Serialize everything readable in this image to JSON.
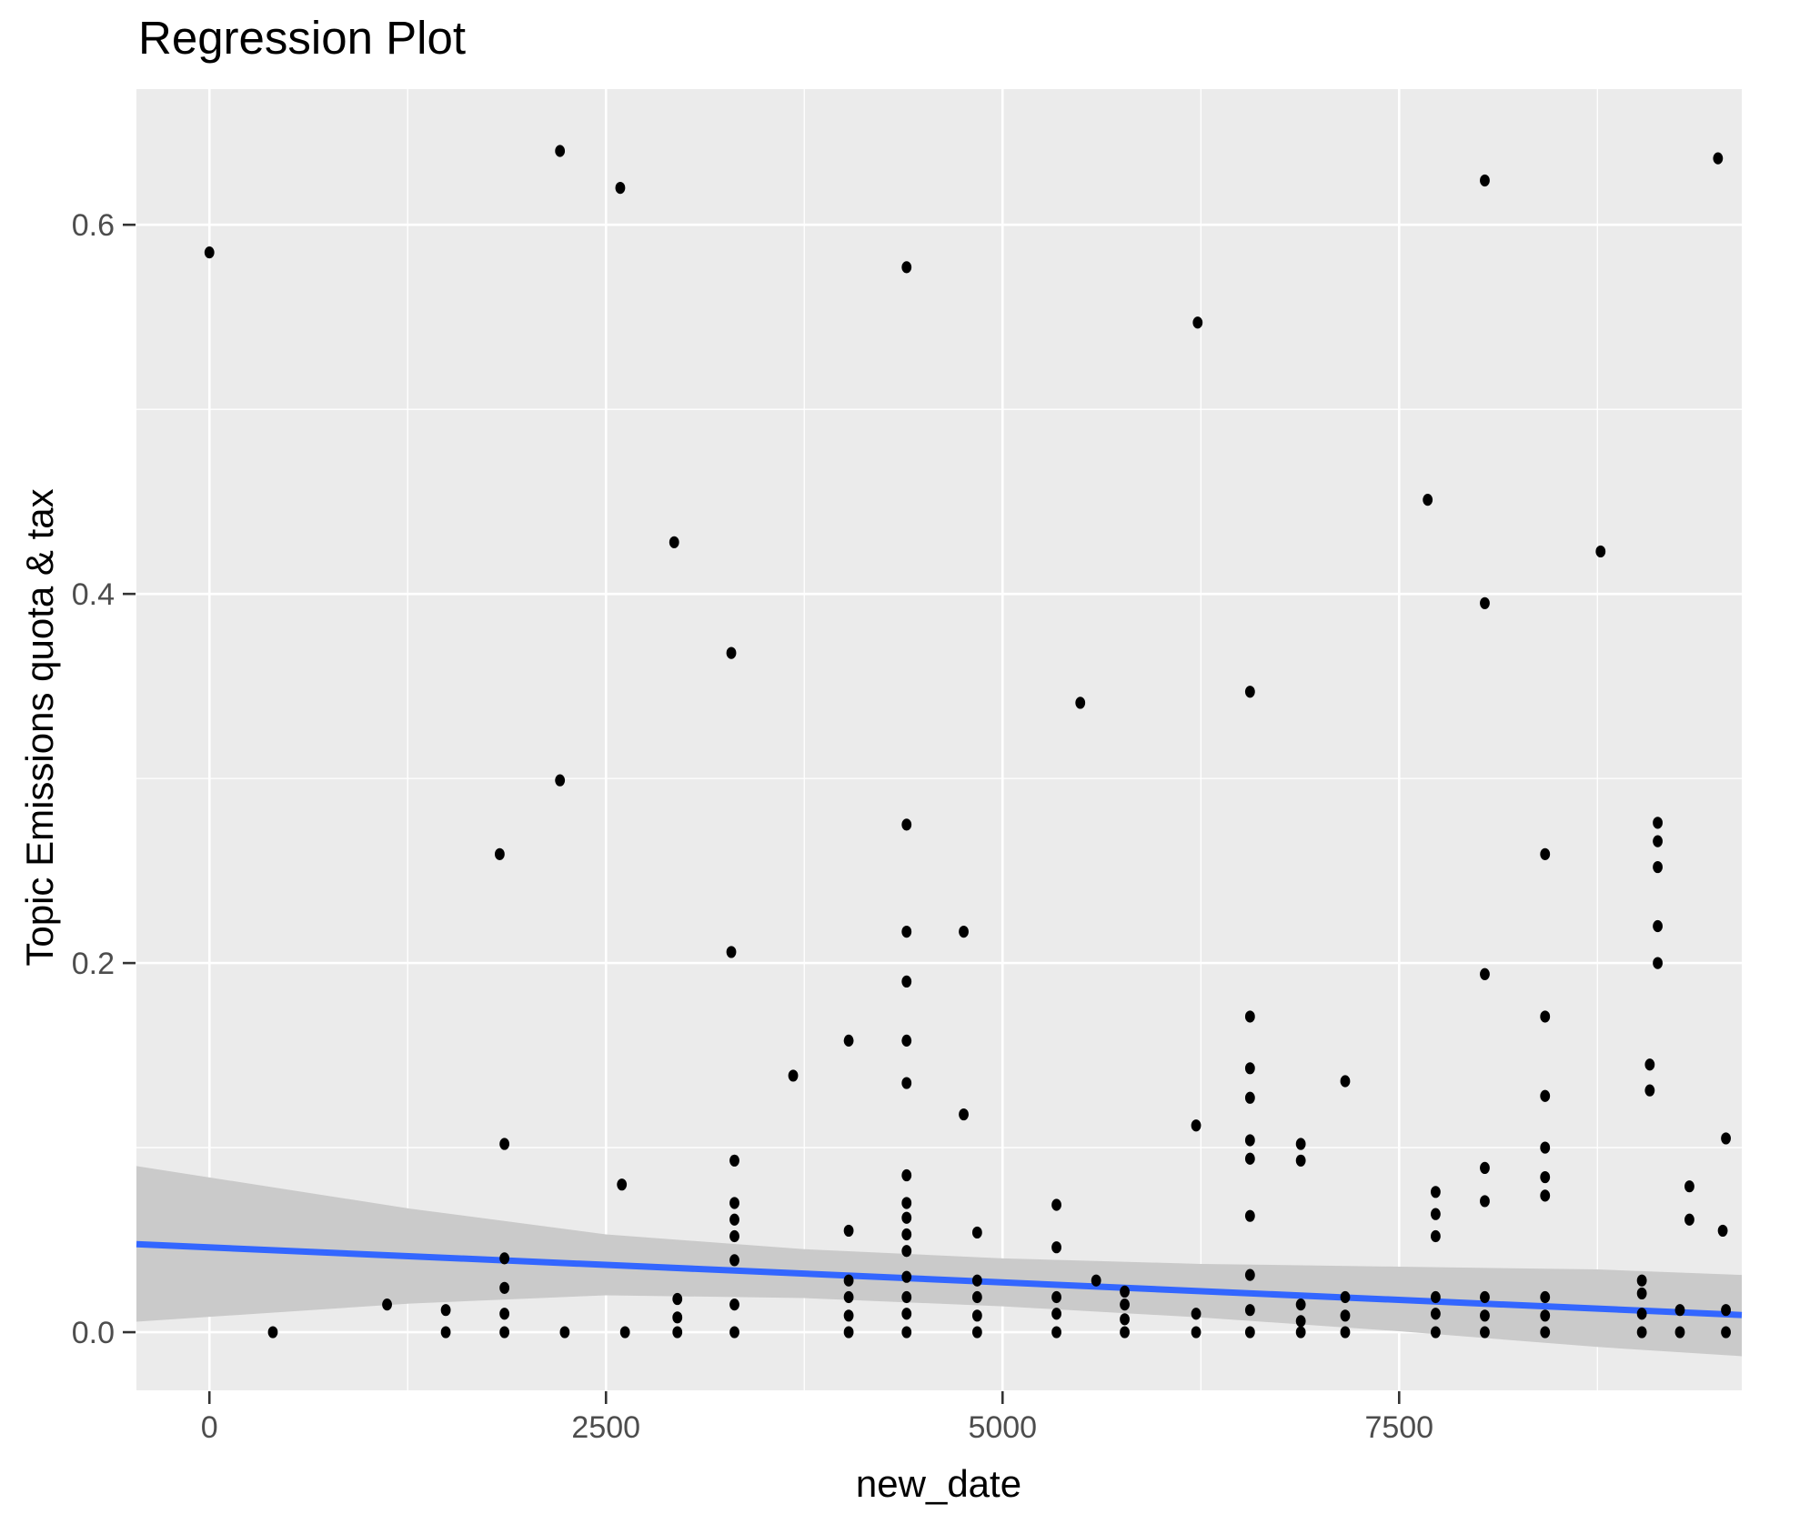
{
  "chart_data": {
    "type": "scatter",
    "title": "Regression Plot",
    "xlabel": "new_date",
    "ylabel": "Topic Emissions quota & tax",
    "x_ticks": {
      "values": [
        0,
        2500,
        5000,
        7500
      ],
      "labels": [
        "0",
        "2500",
        "5000",
        "7500"
      ]
    },
    "y_ticks": {
      "values": [
        0.0,
        0.2,
        0.4,
        0.6
      ],
      "labels": [
        "0.0",
        "0.2",
        "0.4",
        "0.6"
      ]
    },
    "x_minor": [
      1250,
      3750,
      6250,
      8750
    ],
    "y_minor": [
      0.1,
      0.3,
      0.5
    ],
    "xlim": [
      -460,
      9660
    ],
    "ylim": [
      -0.0315,
      0.6735
    ],
    "grid": "on",
    "legend_position": "none",
    "colors": {
      "panel_bg": "#EBEBEB",
      "grid": "#FFFFFF",
      "point": "#000000",
      "smooth_line": "#3366FF",
      "ci_band": "#CACACA",
      "tick_mark": "#333333",
      "tick_label": "#4D4D4D",
      "text": "#000000"
    },
    "regression_line": {
      "x": [
        -460,
        9660
      ],
      "y": [
        0.0477,
        0.0093
      ]
    },
    "ci_band": {
      "x": [
        -460,
        1261,
        2500,
        3750,
        5000,
        6250,
        7500,
        8750,
        9660
      ],
      "upper": [
        0.09,
        0.067,
        0.053,
        0.045,
        0.04,
        0.037,
        0.0355,
        0.034,
        0.031
      ],
      "lower": [
        0.0057,
        0.0155,
        0.02,
        0.0185,
        0.014,
        0.008,
        0.0005,
        -0.008,
        -0.013
      ]
    },
    "points": [
      [
        0,
        0.585
      ],
      [
        400,
        0.0
      ],
      [
        1120,
        0.015
      ],
      [
        1490,
        0.012
      ],
      [
        1490,
        0.0
      ],
      [
        1830,
        0.259
      ],
      [
        1860,
        0.102
      ],
      [
        1860,
        0.04
      ],
      [
        1860,
        0.024
      ],
      [
        1860,
        0.01
      ],
      [
        1860,
        0.0
      ],
      [
        2210,
        0.64
      ],
      [
        2210,
        0.299
      ],
      [
        2240,
        0.0
      ],
      [
        2590,
        0.62
      ],
      [
        2600,
        0.08
      ],
      [
        2620,
        0.0
      ],
      [
        2930,
        0.428
      ],
      [
        2950,
        0.018
      ],
      [
        2950,
        0.008
      ],
      [
        2950,
        0.0
      ],
      [
        3290,
        0.368
      ],
      [
        3290,
        0.206
      ],
      [
        3310,
        0.093
      ],
      [
        3310,
        0.07
      ],
      [
        3310,
        0.061
      ],
      [
        3310,
        0.052
      ],
      [
        3310,
        0.039
      ],
      [
        3310,
        0.015
      ],
      [
        3310,
        0.0
      ],
      [
        3680,
        0.139
      ],
      [
        4030,
        0.158
      ],
      [
        4030,
        0.055
      ],
      [
        4030,
        0.028
      ],
      [
        4030,
        0.019
      ],
      [
        4030,
        0.009
      ],
      [
        4030,
        0.0
      ],
      [
        4395,
        0.577
      ],
      [
        4395,
        0.275
      ],
      [
        4395,
        0.217
      ],
      [
        4395,
        0.19
      ],
      [
        4395,
        0.158
      ],
      [
        4395,
        0.135
      ],
      [
        4395,
        0.085
      ],
      [
        4395,
        0.07
      ],
      [
        4395,
        0.062
      ],
      [
        4395,
        0.053
      ],
      [
        4395,
        0.044
      ],
      [
        4395,
        0.03
      ],
      [
        4395,
        0.019
      ],
      [
        4395,
        0.01
      ],
      [
        4395,
        0.0
      ],
      [
        4755,
        0.217
      ],
      [
        4755,
        0.118
      ],
      [
        4840,
        0.054
      ],
      [
        4840,
        0.028
      ],
      [
        4840,
        0.019
      ],
      [
        4840,
        0.009
      ],
      [
        4840,
        0.0
      ],
      [
        5340,
        0.069
      ],
      [
        5340,
        0.046
      ],
      [
        5340,
        0.019
      ],
      [
        5340,
        0.01
      ],
      [
        5340,
        0.0
      ],
      [
        5490,
        0.341
      ],
      [
        5590,
        0.028
      ],
      [
        5770,
        0.022
      ],
      [
        5770,
        0.015
      ],
      [
        5770,
        0.007
      ],
      [
        5770,
        0.0
      ],
      [
        6230,
        0.547
      ],
      [
        6220,
        0.112
      ],
      [
        6220,
        0.01
      ],
      [
        6220,
        0.0
      ],
      [
        6560,
        0.347
      ],
      [
        6560,
        0.171
      ],
      [
        6560,
        0.143
      ],
      [
        6560,
        0.127
      ],
      [
        6560,
        0.104
      ],
      [
        6560,
        0.094
      ],
      [
        6560,
        0.063
      ],
      [
        6560,
        0.031
      ],
      [
        6560,
        0.012
      ],
      [
        6560,
        0.0
      ],
      [
        6880,
        0.102
      ],
      [
        6880,
        0.093
      ],
      [
        6880,
        0.015
      ],
      [
        6880,
        0.006
      ],
      [
        6880,
        0.0
      ],
      [
        7160,
        0.136
      ],
      [
        7160,
        0.019
      ],
      [
        7160,
        0.009
      ],
      [
        7160,
        0.0
      ],
      [
        7680,
        0.451
      ],
      [
        7730,
        0.076
      ],
      [
        7730,
        0.064
      ],
      [
        7730,
        0.052
      ],
      [
        7730,
        0.019
      ],
      [
        7730,
        0.01
      ],
      [
        7730,
        0.0
      ],
      [
        8040,
        0.624
      ],
      [
        8040,
        0.395
      ],
      [
        8040,
        0.194
      ],
      [
        8040,
        0.089
      ],
      [
        8040,
        0.071
      ],
      [
        8040,
        0.019
      ],
      [
        8040,
        0.009
      ],
      [
        8040,
        0.0
      ],
      [
        8420,
        0.259
      ],
      [
        8420,
        0.171
      ],
      [
        8420,
        0.128
      ],
      [
        8420,
        0.1
      ],
      [
        8420,
        0.084
      ],
      [
        8420,
        0.074
      ],
      [
        8420,
        0.019
      ],
      [
        8420,
        0.009
      ],
      [
        8420,
        0.0
      ],
      [
        8770,
        0.423
      ],
      [
        9030,
        0.028
      ],
      [
        9030,
        0.021
      ],
      [
        9030,
        0.01
      ],
      [
        9030,
        0.0
      ],
      [
        9080,
        0.145
      ],
      [
        9080,
        0.131
      ],
      [
        9130,
        0.276
      ],
      [
        9130,
        0.266
      ],
      [
        9130,
        0.252
      ],
      [
        9130,
        0.22
      ],
      [
        9130,
        0.2
      ],
      [
        9270,
        0.012
      ],
      [
        9270,
        0.0
      ],
      [
        9330,
        0.079
      ],
      [
        9330,
        0.061
      ],
      [
        9510,
        0.636
      ],
      [
        9560,
        0.105
      ],
      [
        9540,
        0.055
      ],
      [
        9560,
        0.012
      ],
      [
        9560,
        0.0
      ]
    ]
  }
}
